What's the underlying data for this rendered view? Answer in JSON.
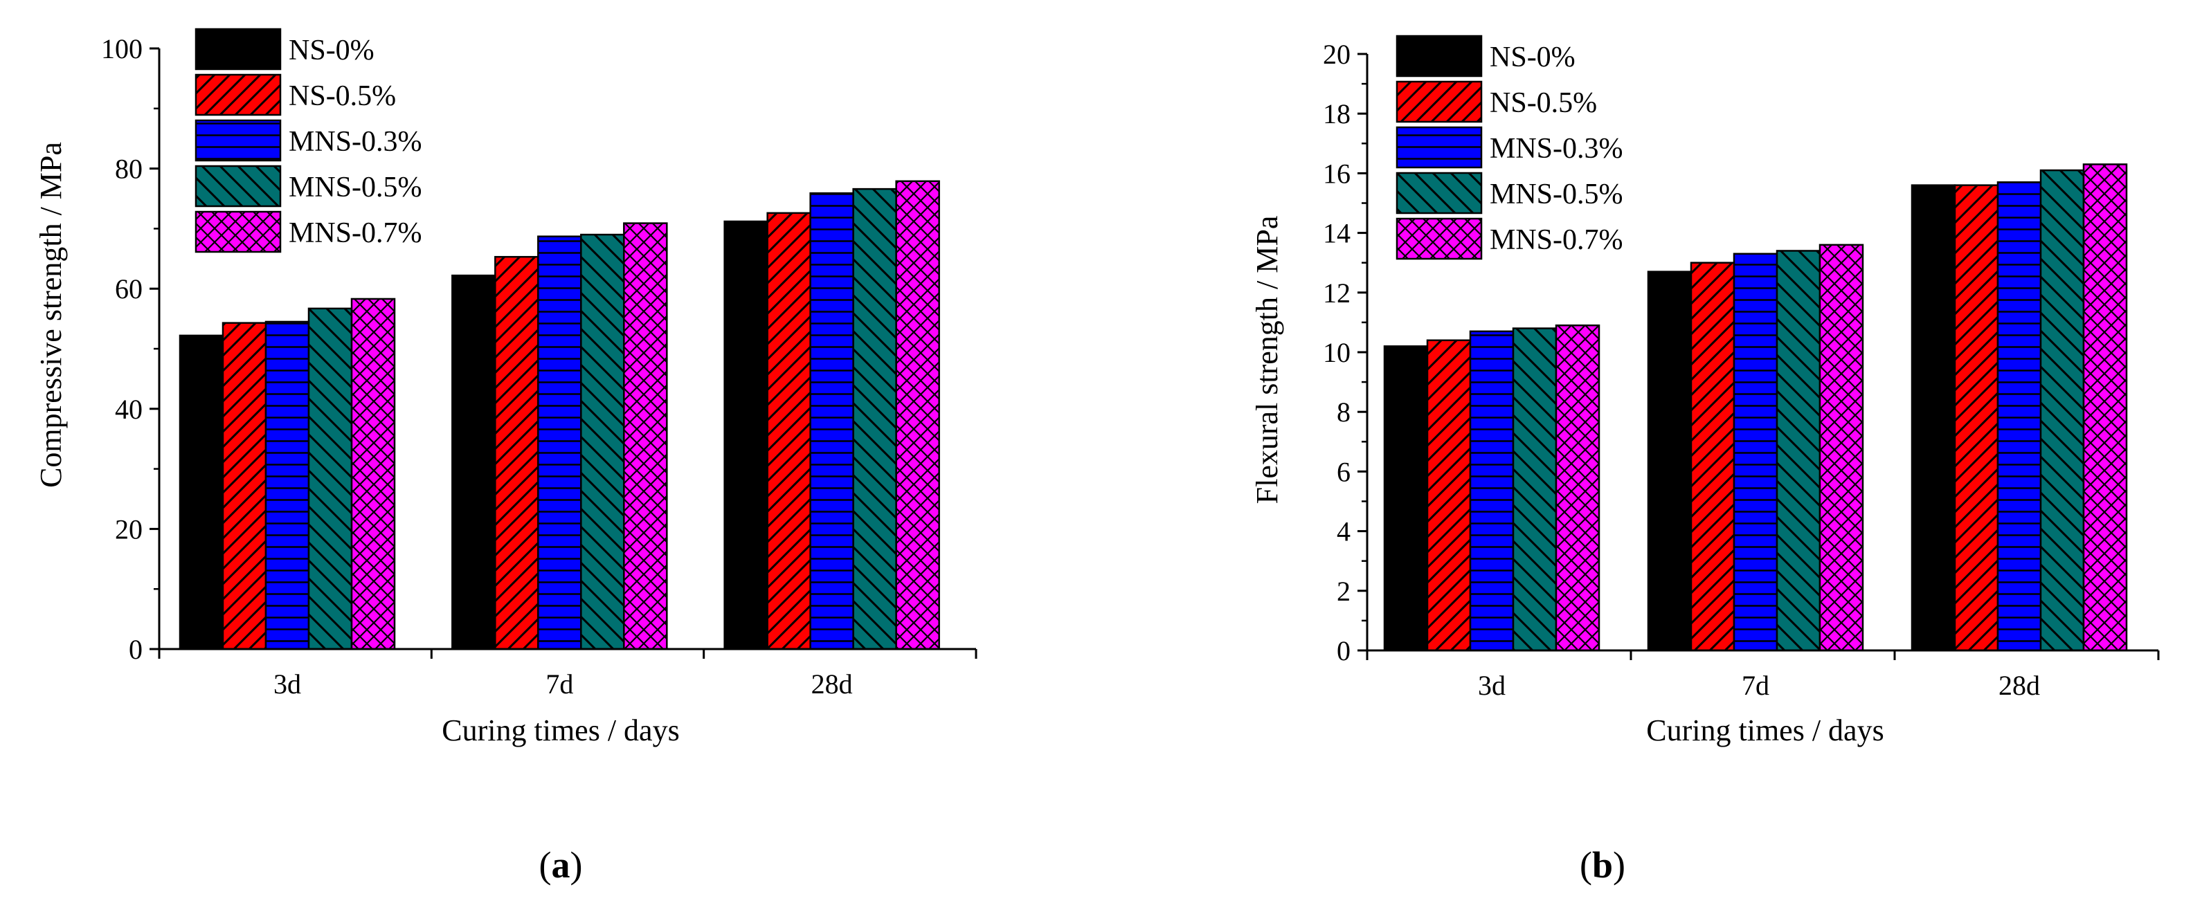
{
  "series_styles": [
    {
      "name": "NS-0%",
      "color": "#000000",
      "pattern": "solid"
    },
    {
      "name": "NS-0.5%",
      "color": "#ff0000",
      "pattern": "diag"
    },
    {
      "name": "MNS-0.3%",
      "color": "#0000ff",
      "pattern": "horiz"
    },
    {
      "name": "MNS-0.5%",
      "color": "#007070",
      "pattern": "backdiag"
    },
    {
      "name": "MNS-0.7%",
      "color": "#ff00ff",
      "pattern": "cross"
    }
  ],
  "panels": [
    {
      "open": "(",
      "letter": "a",
      "close": ")"
    },
    {
      "open": "(",
      "letter": "b",
      "close": ")"
    }
  ],
  "chart_data": [
    {
      "type": "bar",
      "title": "",
      "xlabel": "Curing times / days",
      "ylabel": "Compressive strength / MPa",
      "categories": [
        "3d",
        "7d",
        "28d"
      ],
      "ylim": [
        0,
        100
      ],
      "yticks": [
        0,
        20,
        40,
        60,
        80,
        100
      ],
      "ytick_labels": [
        "0",
        "20",
        "40",
        "60",
        "80",
        "100"
      ],
      "legend_position": "top-left",
      "series": [
        {
          "name": "NS-0%",
          "values": [
            52.2,
            62.2,
            71.2
          ]
        },
        {
          "name": "NS-0.5%",
          "values": [
            54.3,
            65.3,
            72.6
          ]
        },
        {
          "name": "MNS-0.3%",
          "values": [
            54.5,
            68.7,
            75.9
          ]
        },
        {
          "name": "MNS-0.5%",
          "values": [
            56.7,
            69.0,
            76.6
          ]
        },
        {
          "name": "MNS-0.7%",
          "values": [
            58.3,
            70.9,
            77.9
          ]
        }
      ]
    },
    {
      "type": "bar",
      "title": "",
      "xlabel": "Curing times / days",
      "ylabel": "Flexural strength / MPa",
      "categories": [
        "3d",
        "7d",
        "28d"
      ],
      "ylim": [
        0,
        20
      ],
      "yticks": [
        0,
        2,
        4,
        6,
        8,
        10,
        12,
        14,
        16,
        18,
        20
      ],
      "ytick_labels": [
        "0",
        "2",
        "4",
        "6",
        "8",
        "10",
        "12",
        "14",
        "16",
        "18",
        "20"
      ],
      "legend_position": "top-left",
      "series": [
        {
          "name": "NS-0%",
          "values": [
            10.2,
            12.7,
            15.6
          ]
        },
        {
          "name": "NS-0.5%",
          "values": [
            10.4,
            13.0,
            15.6
          ]
        },
        {
          "name": "MNS-0.3%",
          "values": [
            10.7,
            13.3,
            15.7
          ]
        },
        {
          "name": "MNS-0.5%",
          "values": [
            10.8,
            13.4,
            16.1
          ]
        },
        {
          "name": "MNS-0.7%",
          "values": [
            10.9,
            13.6,
            16.3
          ]
        }
      ]
    }
  ]
}
